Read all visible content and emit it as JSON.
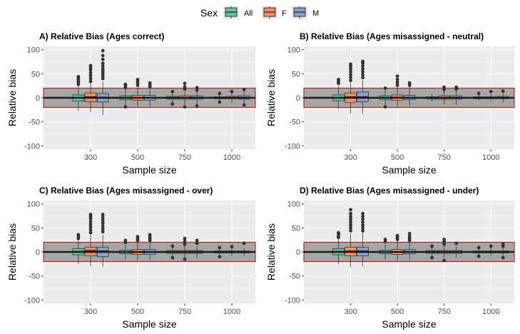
{
  "legend": {
    "title": "Sex",
    "items": [
      {
        "label": "All",
        "color": "#66c2a5"
      },
      {
        "label": "F",
        "color": "#fc8d62"
      },
      {
        "label": "M",
        "color": "#8da0cb"
      }
    ]
  },
  "chart_data": [
    {
      "type": "boxplot",
      "title": "A) Relative Bias (Ages correct)",
      "xlabel": "Sample size",
      "ylabel": "Relative bias",
      "categories": [
        "300",
        "500",
        "750",
        "1000"
      ],
      "ylim": [
        -107,
        107
      ],
      "yticks": [
        -100,
        -50,
        0,
        50,
        100
      ],
      "reference_line": 0,
      "band": {
        "low": -20,
        "high": 20,
        "fill": "#a6a6a6",
        "stroke": "#cc0000"
      },
      "grid": true,
      "series": [
        {
          "name": "All",
          "color": "#66c2a5",
          "boxes": [
            {
              "q1": -7,
              "median": 0,
              "q3": 6,
              "wlo": -27,
              "whi": 25,
              "outliers": [
                28,
                32,
                36,
                40,
                44
              ]
            },
            {
              "q1": -4,
              "median": 0,
              "q3": 4,
              "wlo": -20,
              "whi": 16,
              "outliers": [
                -19,
                21,
                25,
                28
              ]
            },
            {
              "q1": -3,
              "median": 0,
              "q3": 3,
              "wlo": -9,
              "whi": 9,
              "outliers": [
                -13,
                13
              ]
            },
            {
              "q1": -2,
              "median": 0,
              "q3": 2,
              "wlo": -6,
              "whi": 6,
              "outliers": [
                -9,
                9
              ]
            }
          ]
        },
        {
          "name": "F",
          "color": "#fc8d62",
          "boxes": [
            {
              "q1": -8,
              "median": 2,
              "q3": 10,
              "wlo": -30,
              "whi": 30,
              "outliers": [
                34,
                40,
                46,
                52,
                58,
                63,
                67
              ]
            },
            {
              "q1": -5,
              "median": 0,
              "q3": 5,
              "wlo": -18,
              "whi": 22,
              "outliers": [
                26,
                30,
                35,
                38
              ]
            },
            {
              "q1": -3,
              "median": 0,
              "q3": 4,
              "wlo": -14,
              "whi": 12,
              "outliers": [
                -19,
                18,
                23,
                30
              ]
            },
            {
              "q1": -2,
              "median": 0,
              "q3": 3,
              "wlo": -10,
              "whi": 10,
              "outliers": [
                13
              ]
            }
          ]
        },
        {
          "name": "M",
          "color": "#8da0cb",
          "boxes": [
            {
              "q1": -9,
              "median": 1,
              "q3": 9,
              "wlo": -36,
              "whi": 33,
              "outliers": [
                40,
                45,
                50,
                55,
                60,
                66,
                72,
                80,
                88,
                98
              ]
            },
            {
              "q1": -5,
              "median": 0,
              "q3": 5,
              "wlo": -18,
              "whi": 18,
              "outliers": [
                23,
                27,
                31
              ]
            },
            {
              "q1": -3,
              "median": 0,
              "q3": 4,
              "wlo": -14,
              "whi": 12,
              "outliers": [
                -17,
                16,
                21
              ]
            },
            {
              "q1": -3,
              "median": 0,
              "q3": 4,
              "wlo": -12,
              "whi": 12,
              "outliers": [
                -15,
                17
              ]
            }
          ]
        }
      ]
    },
    {
      "type": "boxplot",
      "title": "B) Relative Bias (Ages misassigned - neutral)",
      "xlabel": "Sample size",
      "ylabel": "Relative bias",
      "categories": [
        "300",
        "500",
        "750",
        "1000"
      ],
      "ylim": [
        -107,
        107
      ],
      "yticks": [
        -100,
        -50,
        0,
        50,
        100
      ],
      "reference_line": 0,
      "band": {
        "low": -20,
        "high": 20,
        "fill": "#a6a6a6",
        "stroke": "#cc0000"
      },
      "grid": true,
      "series": [
        {
          "name": "All",
          "color": "#66c2a5",
          "boxes": [
            {
              "q1": -6,
              "median": 0,
              "q3": 6,
              "wlo": -24,
              "whi": 25,
              "outliers": [
                30,
                34,
                38
              ]
            },
            {
              "q1": -4,
              "median": 0,
              "q3": 4,
              "wlo": -16,
              "whi": 16,
              "outliers": [
                -19,
                20
              ]
            },
            {
              "q1": -3,
              "median": 0,
              "q3": 2,
              "wlo": -8,
              "whi": 8,
              "outliers": []
            },
            {
              "q1": -2,
              "median": 0,
              "q3": 2,
              "wlo": -6,
              "whi": 6,
              "outliers": [
                9
              ]
            }
          ]
        },
        {
          "name": "F",
          "color": "#fc8d62",
          "boxes": [
            {
              "q1": -10,
              "median": 2,
              "q3": 10,
              "wlo": -33,
              "whi": 32,
              "outliers": [
                36,
                42,
                48,
                54,
                60,
                66,
                70
              ]
            },
            {
              "q1": -5,
              "median": 1,
              "q3": 6,
              "wlo": -20,
              "whi": 22,
              "outliers": [
                26,
                32,
                38,
                45
              ]
            },
            {
              "q1": -3,
              "median": 0,
              "q3": 4,
              "wlo": -14,
              "whi": 14,
              "outliers": [
                17,
                22
              ]
            },
            {
              "q1": -2,
              "median": 0,
              "q3": 2,
              "wlo": -7,
              "whi": 8,
              "outliers": [
                13
              ]
            }
          ]
        },
        {
          "name": "M",
          "color": "#8da0cb",
          "boxes": [
            {
              "q1": -8,
              "median": 2,
              "q3": 12,
              "wlo": -33,
              "whi": 36,
              "outliers": [
                42,
                48,
                54,
                60,
                66,
                72,
                76
              ]
            },
            {
              "q1": -4,
              "median": 0,
              "q3": 5,
              "wlo": -16,
              "whi": 22,
              "outliers": [
                26,
                31
              ]
            },
            {
              "q1": -3,
              "median": 0,
              "q3": 4,
              "wlo": -14,
              "whi": 14,
              "outliers": [
                18,
                22
              ]
            },
            {
              "q1": -2,
              "median": 0,
              "q3": 3,
              "wlo": -10,
              "whi": 10,
              "outliers": [
                14
              ]
            }
          ]
        }
      ]
    },
    {
      "type": "boxplot",
      "title": "C) Relative Bias (Ages misassigned - over)",
      "xlabel": "Sample size",
      "ylabel": "Relative bias",
      "categories": [
        "300",
        "500",
        "750",
        "1000"
      ],
      "ylim": [
        -107,
        107
      ],
      "yticks": [
        -100,
        -50,
        0,
        50,
        100
      ],
      "reference_line": 0,
      "band": {
        "low": -20,
        "high": 20,
        "fill": "#a6a6a6",
        "stroke": "#cc0000"
      },
      "grid": true,
      "series": [
        {
          "name": "All",
          "color": "#66c2a5",
          "boxes": [
            {
              "q1": -6,
              "median": 1,
              "q3": 7,
              "wlo": -25,
              "whi": 24,
              "outliers": [
                28,
                32,
                36
              ]
            },
            {
              "q1": -4,
              "median": 0,
              "q3": 4,
              "wlo": -16,
              "whi": 16,
              "outliers": [
                20,
                24
              ]
            },
            {
              "q1": -3,
              "median": 0,
              "q3": 3,
              "wlo": -9,
              "whi": 9,
              "outliers": [
                -12,
                12
              ]
            },
            {
              "q1": -2,
              "median": 0,
              "q3": 2,
              "wlo": -6,
              "whi": 6,
              "outliers": [
                -10,
                9
              ]
            }
          ]
        },
        {
          "name": "F",
          "color": "#fc8d62",
          "boxes": [
            {
              "q1": -8,
              "median": 3,
              "q3": 10,
              "wlo": -30,
              "whi": 36,
              "outliers": [
                40,
                46,
                52,
                58,
                64,
                70,
                74,
                78
              ]
            },
            {
              "q1": -5,
              "median": 0,
              "q3": 5,
              "wlo": -18,
              "whi": 20,
              "outliers": [
                24,
                28,
                32
              ]
            },
            {
              "q1": -3,
              "median": 0,
              "q3": 3,
              "wlo": -12,
              "whi": 12,
              "outliers": [
                -15,
                16,
                22,
                28
              ]
            },
            {
              "q1": -2,
              "median": 0,
              "q3": 2,
              "wlo": -8,
              "whi": 8,
              "outliers": [
                11
              ]
            }
          ]
        },
        {
          "name": "M",
          "color": "#8da0cb",
          "boxes": [
            {
              "q1": -10,
              "median": 2,
              "q3": 10,
              "wlo": -30,
              "whi": 36,
              "outliers": [
                42,
                48,
                54,
                60,
                66,
                72,
                78
              ]
            },
            {
              "q1": -5,
              "median": 0,
              "q3": 5,
              "wlo": -16,
              "whi": 20,
              "outliers": [
                24,
                28,
                32,
                36
              ]
            },
            {
              "q1": -3,
              "median": 0,
              "q3": 3,
              "wlo": -12,
              "whi": 12,
              "outliers": [
                18,
                24
              ]
            },
            {
              "q1": -2,
              "median": 0,
              "q3": 2,
              "wlo": -8,
              "whi": 8,
              "outliers": [
                18
              ]
            }
          ]
        }
      ]
    },
    {
      "type": "boxplot",
      "title": "D) Relative Bias (Ages misassigned - under)",
      "xlabel": "Sample size",
      "ylabel": "Relative bias",
      "categories": [
        "300",
        "500",
        "750",
        "1000"
      ],
      "ylim": [
        -107,
        107
      ],
      "yticks": [
        -100,
        -50,
        0,
        50,
        100
      ],
      "reference_line": 0,
      "band": {
        "low": -20,
        "high": 20,
        "fill": "#a6a6a6",
        "stroke": "#cc0000"
      },
      "grid": true,
      "series": [
        {
          "name": "All",
          "color": "#66c2a5",
          "boxes": [
            {
              "q1": -6,
              "median": 1,
              "q3": 7,
              "wlo": -25,
              "whi": 26,
              "outliers": [
                30,
                34,
                38,
                40
              ]
            },
            {
              "q1": -4,
              "median": 0,
              "q3": 4,
              "wlo": -16,
              "whi": 18,
              "outliers": [
                22,
                26
              ]
            },
            {
              "q1": -3,
              "median": 0,
              "q3": 3,
              "wlo": -9,
              "whi": 9,
              "outliers": [
                -12,
                12
              ]
            },
            {
              "q1": -2,
              "median": 0,
              "q3": 2,
              "wlo": -6,
              "whi": 6,
              "outliers": [
                -9,
                9
              ]
            }
          ]
        },
        {
          "name": "F",
          "color": "#fc8d62",
          "boxes": [
            {
              "q1": -8,
              "median": 2,
              "q3": 10,
              "wlo": -32,
              "whi": 38,
              "outliers": [
                44,
                50,
                56,
                62,
                68,
                74,
                80,
                88
              ]
            },
            {
              "q1": -5,
              "median": 0,
              "q3": 5,
              "wlo": -18,
              "whi": 22,
              "outliers": [
                26,
                30,
                34
              ]
            },
            {
              "q1": -3,
              "median": 0,
              "q3": 3,
              "wlo": -12,
              "whi": 12,
              "outliers": [
                -18,
                16,
                22,
                26
              ]
            },
            {
              "q1": -2,
              "median": 0,
              "q3": 2,
              "wlo": -8,
              "whi": 8,
              "outliers": [
                12
              ]
            }
          ]
        },
        {
          "name": "M",
          "color": "#8da0cb",
          "boxes": [
            {
              "q1": -8,
              "median": 2,
              "q3": 10,
              "wlo": -30,
              "whi": 40,
              "outliers": [
                44,
                50,
                56,
                62,
                68,
                74,
                80
              ]
            },
            {
              "q1": -4,
              "median": 0,
              "q3": 5,
              "wlo": -16,
              "whi": 20,
              "outliers": [
                24,
                28,
                32,
                38
              ]
            },
            {
              "q1": -3,
              "median": 0,
              "q3": 3,
              "wlo": -12,
              "whi": 12,
              "outliers": [
                18
              ]
            },
            {
              "q1": -2,
              "median": 0,
              "q3": 2,
              "wlo": -8,
              "whi": 8,
              "outliers": [
                -12,
                12,
                16
              ]
            }
          ]
        }
      ]
    }
  ]
}
